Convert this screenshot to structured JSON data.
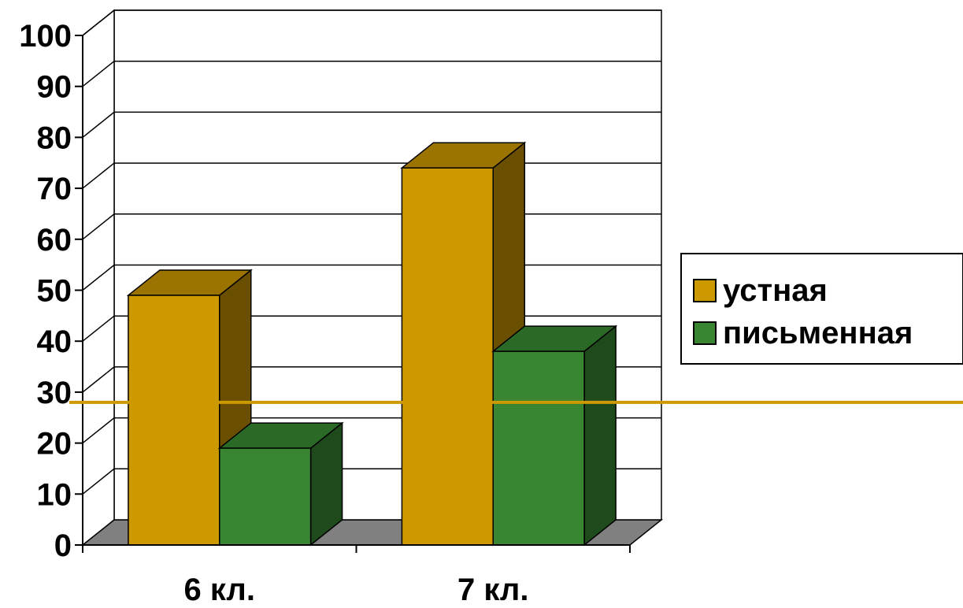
{
  "chart_data": {
    "type": "bar",
    "title": "",
    "xlabel": "",
    "ylabel": "",
    "categories": [
      "6 кл.",
      "7 кл."
    ],
    "series": [
      {
        "name": "устная",
        "values": [
          49,
          74
        ]
      },
      {
        "name": "письменная",
        "values": [
          19,
          38
        ]
      }
    ],
    "ylim": [
      0,
      100
    ],
    "yticks": [
      0,
      10,
      20,
      30,
      40,
      50,
      60,
      70,
      80,
      90,
      100
    ],
    "grid": true,
    "legend_position": "right",
    "reference_line": {
      "value": 28
    }
  },
  "colors": {
    "series": [
      "#cc9900",
      "#3a8532"
    ],
    "series_top": [
      "#9a7300",
      "#2b6a26"
    ],
    "series_side": [
      "#6a4f00",
      "#1f4a1b"
    ],
    "floor": "#808080",
    "reference_line": "#cc9900"
  },
  "legend": {
    "items": [
      {
        "label": "устная"
      },
      {
        "label": "письменная"
      }
    ]
  }
}
